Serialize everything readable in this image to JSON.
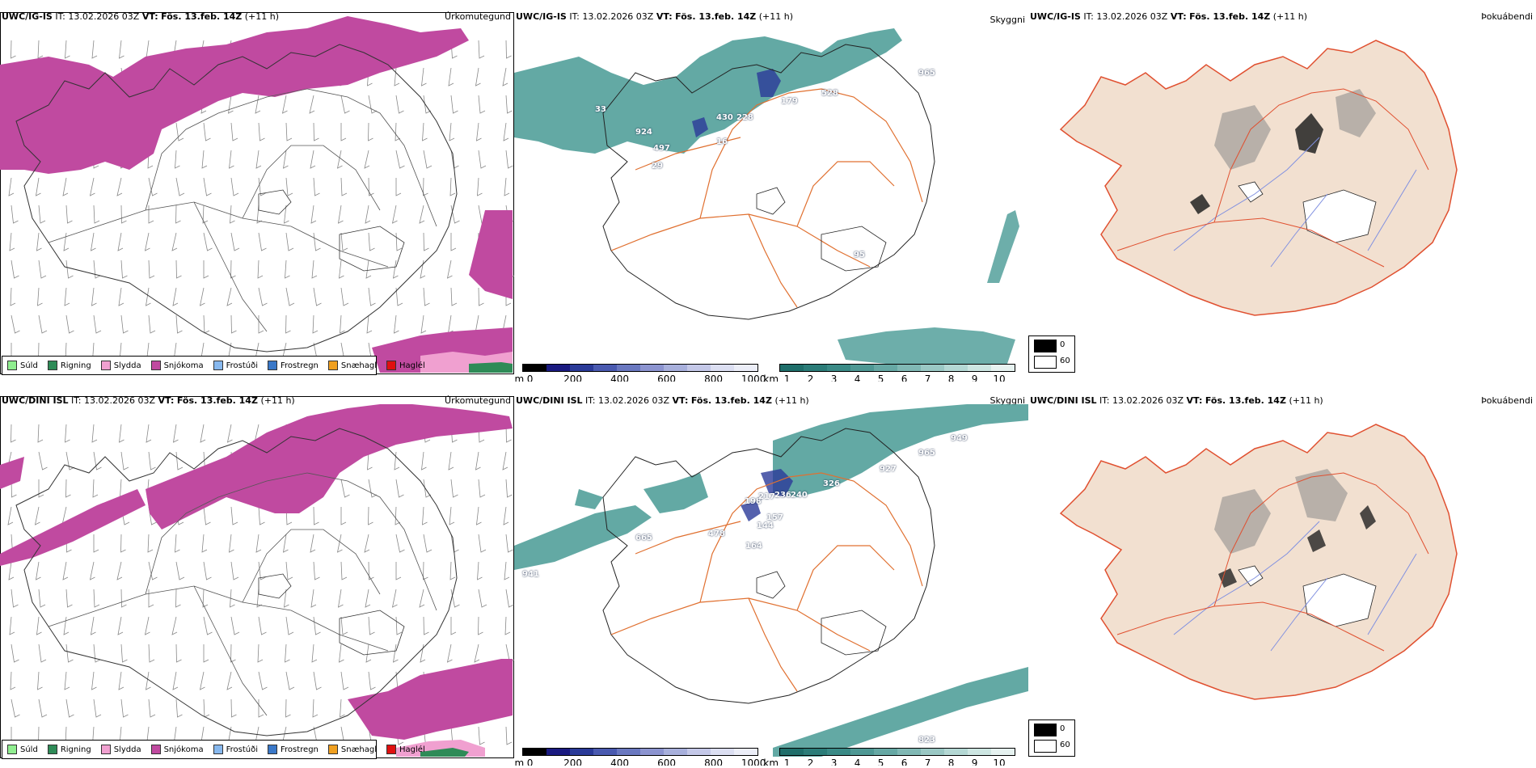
{
  "rows": [
    {
      "model": "UWC/IG-IS",
      "it_label": "IT:",
      "it_value": "13.02.2026 03Z",
      "vt_label": "VT:",
      "vt_value": "Fös. 13.feb. 14Z",
      "lead": "(+11 h)",
      "labels": {
        "sky": [
          "33",
          "924",
          "497",
          "29",
          "430",
          "228",
          "179",
          "528",
          "965",
          "16",
          "95"
        ]
      }
    },
    {
      "model": "UWC/DINI ISL",
      "it_label": "IT:",
      "it_value": "13.02.2026 03Z",
      "vt_label": "VT:",
      "vt_value": "Fös. 13.feb. 14Z",
      "lead": "(+11 h)",
      "labels": {
        "sky": [
          "198",
          "217",
          "236",
          "240",
          "326",
          "927",
          "965",
          "949",
          "478",
          "164",
          "144",
          "157",
          "665",
          "941",
          "823"
        ]
      }
    }
  ],
  "panel_titles": {
    "precip": "Úrkomutegund",
    "ceiling": "Skyggni",
    "fog": "Þokuábendi"
  },
  "precip_legend": [
    {
      "label": "Súld",
      "color": "#90ee90"
    },
    {
      "label": "Rigning",
      "color": "#2e8b57"
    },
    {
      "label": "Slydda",
      "color": "#f0a0d0"
    },
    {
      "label": "Snjókoma",
      "color": "#c04aa0"
    },
    {
      "label": "Frostúði",
      "color": "#87b8ee"
    },
    {
      "label": "Frostregn",
      "color": "#3a78c8"
    },
    {
      "label": "Snæhagl",
      "color": "#f0a020"
    },
    {
      "label": "Haglél",
      "color": "#e01010"
    }
  ],
  "ceiling_bar": {
    "unit": "m",
    "ticks": [
      "0",
      "200",
      "400",
      "600",
      "800",
      "1000"
    ],
    "colors": [
      "#000000",
      "#1a1a80",
      "#2a3a98",
      "#4a5ab0",
      "#6a78c0",
      "#8c94d0",
      "#a8b0dc",
      "#c4c8e8",
      "#dcdff2",
      "#eceef8"
    ]
  },
  "vis_bar": {
    "unit": "km",
    "ticks": [
      "1",
      "2",
      "3",
      "4",
      "5",
      "6",
      "7",
      "8",
      "9",
      "10"
    ],
    "colors": [
      "#1e6e6a",
      "#2b7c78",
      "#3a8a86",
      "#4e9894",
      "#66a8a4",
      "#80b8b4",
      "#9ac8c4",
      "#b4d8d4",
      "#cde6e2",
      "#e6f2f0"
    ]
  },
  "fog_legend": {
    "high": "0",
    "low": "60"
  },
  "colors": {
    "snow": "#c04aa0",
    "sleet": "#f0a0d0",
    "rain": "#2e8b57",
    "teal": "#2f8c86",
    "land": "#f2e0d0",
    "road": "#e07030",
    "river": "#8090e0"
  }
}
